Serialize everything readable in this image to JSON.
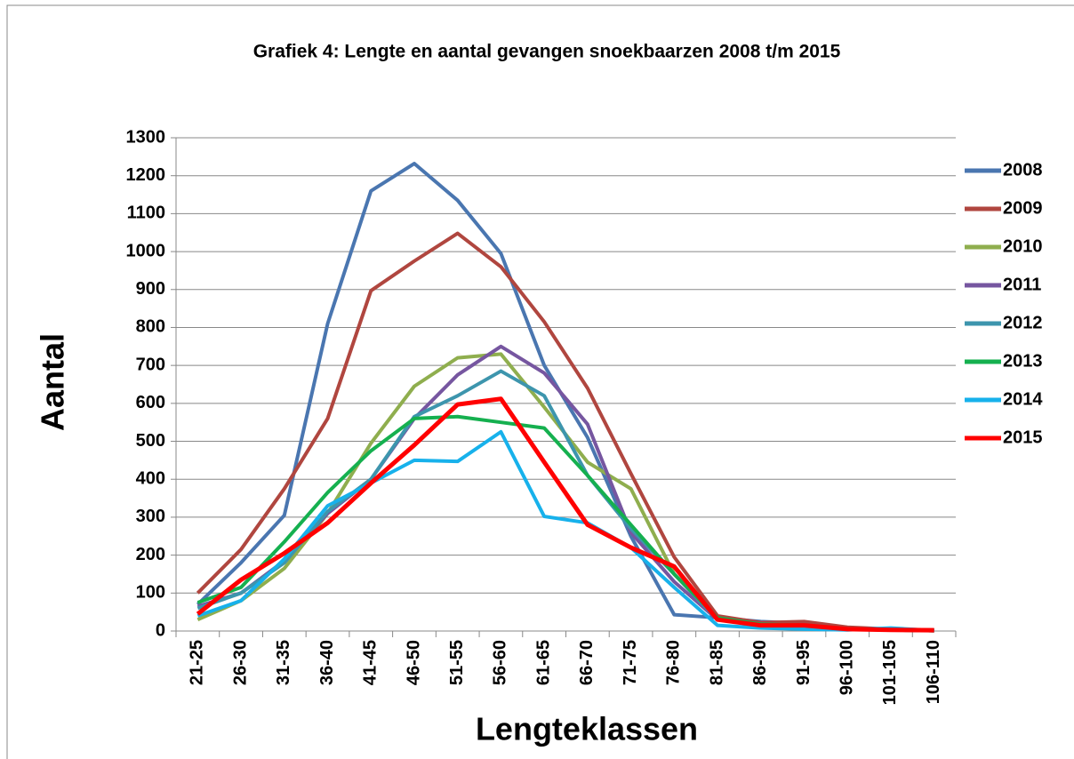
{
  "chart_data": {
    "type": "line",
    "title": "Grafiek 4: Lengte en aantal gevangen snoekbaarzen 2008 t/m 2015",
    "x_label": "Lengteklassen",
    "y_label": "Aantal",
    "categories": [
      "21-25",
      "26-30",
      "31-35",
      "36-40",
      "41-45",
      "46-50",
      "51-55",
      "56-60",
      "61-65",
      "66-70",
      "71-75",
      "76-80",
      "81-85",
      "86-90",
      "91-95",
      "96-100",
      "101-105",
      "106-110"
    ],
    "series": [
      {
        "name": "2008",
        "color": "#4a76b0",
        "values": [
          70,
          180,
          305,
          810,
          1160,
          1232,
          1135,
          995,
          700,
          510,
          250,
          43,
          35,
          25,
          20,
          8,
          5,
          2
        ]
      },
      {
        "name": "2009",
        "color": "#b0463f",
        "values": [
          100,
          215,
          375,
          560,
          897,
          975,
          1048,
          960,
          815,
          640,
          415,
          195,
          40,
          22,
          25,
          10,
          5,
          3
        ]
      },
      {
        "name": "2010",
        "color": "#8fae4e",
        "values": [
          30,
          80,
          165,
          310,
          495,
          645,
          720,
          730,
          590,
          445,
          375,
          150,
          30,
          15,
          12,
          5,
          3,
          1
        ]
      },
      {
        "name": "2011",
        "color": "#7656a0",
        "values": [
          65,
          100,
          185,
          310,
          400,
          560,
          675,
          750,
          680,
          545,
          260,
          130,
          30,
          15,
          10,
          5,
          3,
          1
        ]
      },
      {
        "name": "2012",
        "color": "#3d95ad",
        "values": [
          60,
          100,
          180,
          315,
          400,
          565,
          620,
          685,
          620,
          410,
          270,
          150,
          30,
          15,
          10,
          5,
          3,
          1
        ]
      },
      {
        "name": "2013",
        "color": "#15b04f",
        "values": [
          75,
          115,
          235,
          365,
          475,
          560,
          565,
          550,
          535,
          410,
          280,
          150,
          35,
          18,
          15,
          5,
          3,
          1
        ]
      },
      {
        "name": "2014",
        "color": "#17b1eb",
        "values": [
          40,
          80,
          190,
          330,
          390,
          450,
          447,
          525,
          302,
          285,
          220,
          115,
          15,
          8,
          5,
          3,
          8,
          1
        ]
      },
      {
        "name": "2015",
        "color": "#ff0000",
        "values": [
          45,
          135,
          205,
          285,
          390,
          490,
          597,
          612,
          445,
          280,
          220,
          170,
          30,
          15,
          15,
          5,
          3,
          2
        ]
      }
    ],
    "ylim": [
      0,
      1300
    ],
    "yticks": [
      0,
      100,
      200,
      300,
      400,
      500,
      600,
      700,
      800,
      900,
      1000,
      1100,
      1200,
      1300
    ],
    "grid": true,
    "legend": "right"
  }
}
